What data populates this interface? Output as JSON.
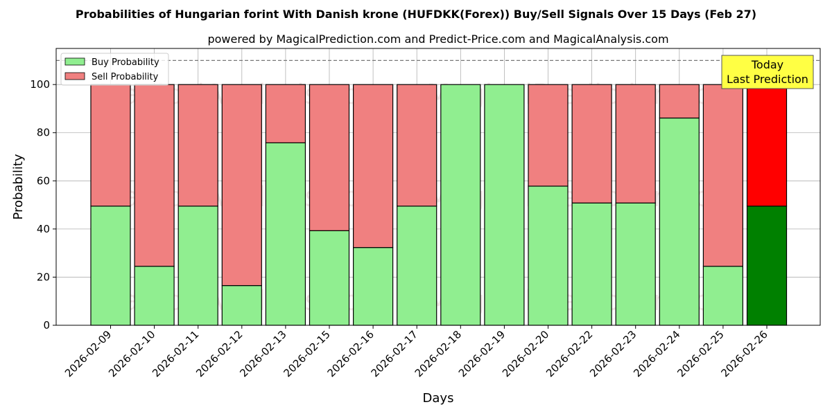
{
  "chart_data": {
    "type": "bar",
    "title": "Probabilities of Hungarian forint With Danish krone (HUFDKK(Forex)) Buy/Sell Signals Over 15 Days (Feb 27)",
    "subtitle": "powered by MagicalPrediction.com and Predict-Price.com and MagicalAnalysis.com",
    "xlabel": "Days",
    "ylabel": "Probability",
    "ylim": [
      0,
      115
    ],
    "yticks": [
      0,
      20,
      40,
      60,
      80,
      100
    ],
    "reference_line": 110,
    "categories": [
      "2026-02-09",
      "2026-02-10",
      "2026-02-11",
      "2026-02-12",
      "2026-02-13",
      "2026-02-15",
      "2026-02-16",
      "2026-02-17",
      "2026-02-18",
      "2026-02-19",
      "2026-02-20",
      "2026-02-22",
      "2026-02-23",
      "2026-02-24",
      "2026-02-25",
      "2026-02-26"
    ],
    "series": [
      {
        "name": "Buy Probability",
        "values": [
          49.5,
          24.5,
          49.5,
          16.5,
          75.8,
          39.3,
          32.3,
          49.5,
          100,
          100,
          57.8,
          50.8,
          50.8,
          86.1,
          24.5,
          49.5
        ]
      },
      {
        "name": "Sell Probability",
        "values": [
          50.5,
          75.5,
          50.5,
          83.5,
          24.2,
          60.7,
          67.7,
          50.5,
          0,
          0,
          42.2,
          49.2,
          49.2,
          13.9,
          75.5,
          50.5
        ]
      }
    ],
    "stacked": true,
    "legend_position": "top-left",
    "grid": true,
    "annotation": {
      "line1": "Today",
      "line2": "Last Prediction"
    },
    "watermarks": [
      "MagicalAnalysis.com",
      "MagicalPrediction.com"
    ],
    "colors": {
      "buy": "#90ee90",
      "sell": "#f08080",
      "buy_today": "#008000",
      "sell_today": "#ff0000",
      "annotation_bg": "#ffff44",
      "grid": "#b0b0b0"
    }
  }
}
